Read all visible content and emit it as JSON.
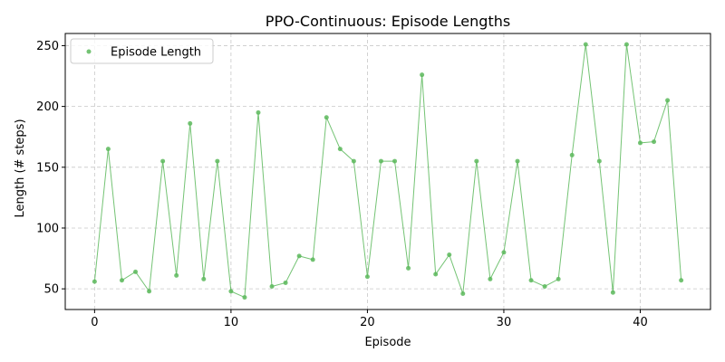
{
  "chart_data": {
    "type": "line",
    "title": "PPO-Continuous: Episode Lengths",
    "xlabel": "Episode",
    "ylabel": "Length (# steps)",
    "xlim": [
      -2.15,
      45.15
    ],
    "ylim": [
      33,
      260
    ],
    "xticks": [
      0,
      10,
      20,
      30,
      40
    ],
    "yticks": [
      50,
      100,
      150,
      200,
      250
    ],
    "grid": true,
    "legend_position": "top-left",
    "series": [
      {
        "name": "Episode Length",
        "color": "#5cb85c",
        "x": [
          0,
          1,
          2,
          3,
          4,
          5,
          6,
          7,
          8,
          9,
          10,
          11,
          12,
          13,
          14,
          15,
          16,
          17,
          18,
          19,
          20,
          21,
          22,
          23,
          24,
          25,
          26,
          27,
          28,
          29,
          30,
          31,
          32,
          33,
          34,
          35,
          36,
          37,
          38,
          39,
          40,
          41,
          42,
          43
        ],
        "y": [
          56,
          165,
          57,
          64,
          48,
          155,
          61,
          186,
          58,
          155,
          48,
          43,
          195,
          52,
          55,
          77,
          74,
          191,
          165,
          155,
          60,
          155,
          155,
          67,
          226,
          62,
          78,
          46,
          155,
          58,
          80,
          155,
          57,
          52,
          58,
          160,
          251,
          155,
          47,
          251,
          170,
          171,
          205,
          57
        ]
      }
    ]
  }
}
